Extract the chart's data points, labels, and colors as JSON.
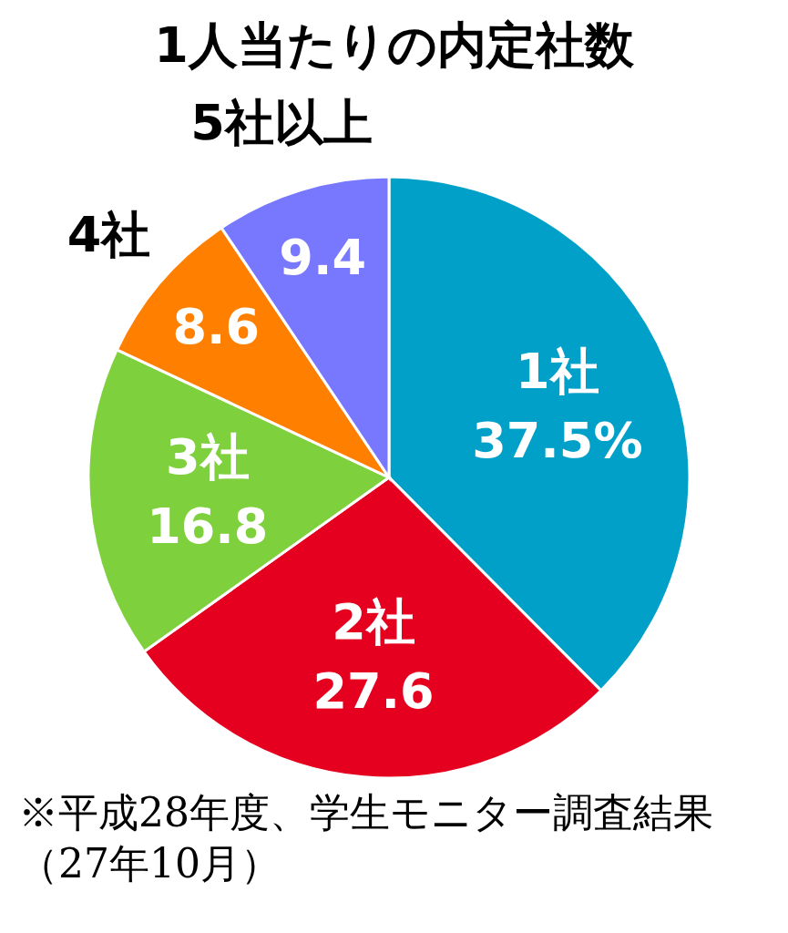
{
  "chart_data": {
    "type": "pie",
    "title": "1人当たりの内定社数",
    "categories": [
      "1社",
      "2社",
      "3社",
      "4社",
      "5社以上"
    ],
    "values": [
      37.5,
      27.6,
      16.8,
      8.6,
      9.4
    ],
    "value_labels": [
      "37.5%",
      "27.6",
      "16.8",
      "8.6",
      "9.4"
    ],
    "colors": [
      "#00a0c8",
      "#e60020",
      "#7ed13c",
      "#ff8000",
      "#7878ff"
    ],
    "legend": false,
    "annotations": [
      "※平成28年度、学生モニター調査結果（27年10月）"
    ]
  }
}
